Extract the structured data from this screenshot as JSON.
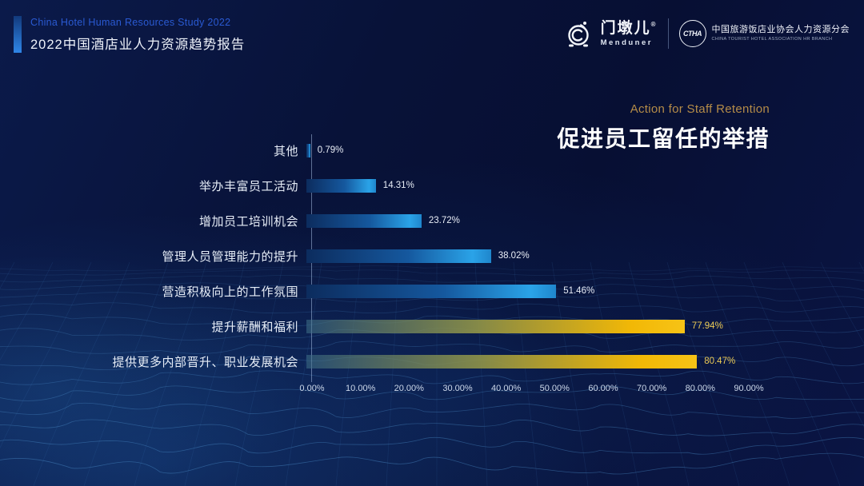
{
  "header": {
    "eyebrow": "China Hotel Human Resources Study 2022",
    "title": "2022中国酒店业人力资源趋势报告"
  },
  "logos": {
    "menduner": {
      "name_cn": "门墩儿",
      "reg": "®",
      "name_en": "Menduner"
    },
    "ctha": {
      "monogram": "CTHA",
      "name_cn": "中国旅游饭店业协会人力资源分会",
      "name_en": "CHINA TOURIST HOTEL ASSOCIATION HR BRANCH"
    }
  },
  "chart_title": {
    "en": "Action for Staff Retention",
    "cn": "促进员工留任的举措"
  },
  "chart_data": {
    "type": "bar",
    "orientation": "horizontal",
    "title": "促进员工留任的举措 (Action for Staff Retention)",
    "categories": [
      "其他",
      "举办丰富员工活动",
      "增加员工培训机会",
      "管理人员管理能力的提升",
      "营造积极向上的工作氛围",
      "提升薪酬和福利",
      "提供更多内部晋升、职业发展机会"
    ],
    "values": [
      0.79,
      14.31,
      23.72,
      38.02,
      51.46,
      77.94,
      80.47
    ],
    "labels": [
      "0.79%",
      "14.31%",
      "23.72%",
      "38.02%",
      "51.46%",
      "77.94%",
      "80.47%"
    ],
    "highlight": [
      false,
      false,
      false,
      false,
      false,
      true,
      true
    ],
    "x_ticks": [
      "0.00%",
      "10.00%",
      "20.00%",
      "30.00%",
      "40.00%",
      "50.00%",
      "60.00%",
      "70.00%",
      "80.00%",
      "90.00%"
    ],
    "xlim": [
      0,
      90
    ],
    "grid": false,
    "legend": false
  },
  "colors": {
    "background": "#081238",
    "accent_blue": "#2a5ad2",
    "title_gold": "#b58c48",
    "bar_blue_start": "#0c2c5e",
    "bar_blue_end": "#2aa3e8",
    "bar_gold_end": "#f7bb06",
    "highlight_value_label": "#ecca55"
  }
}
